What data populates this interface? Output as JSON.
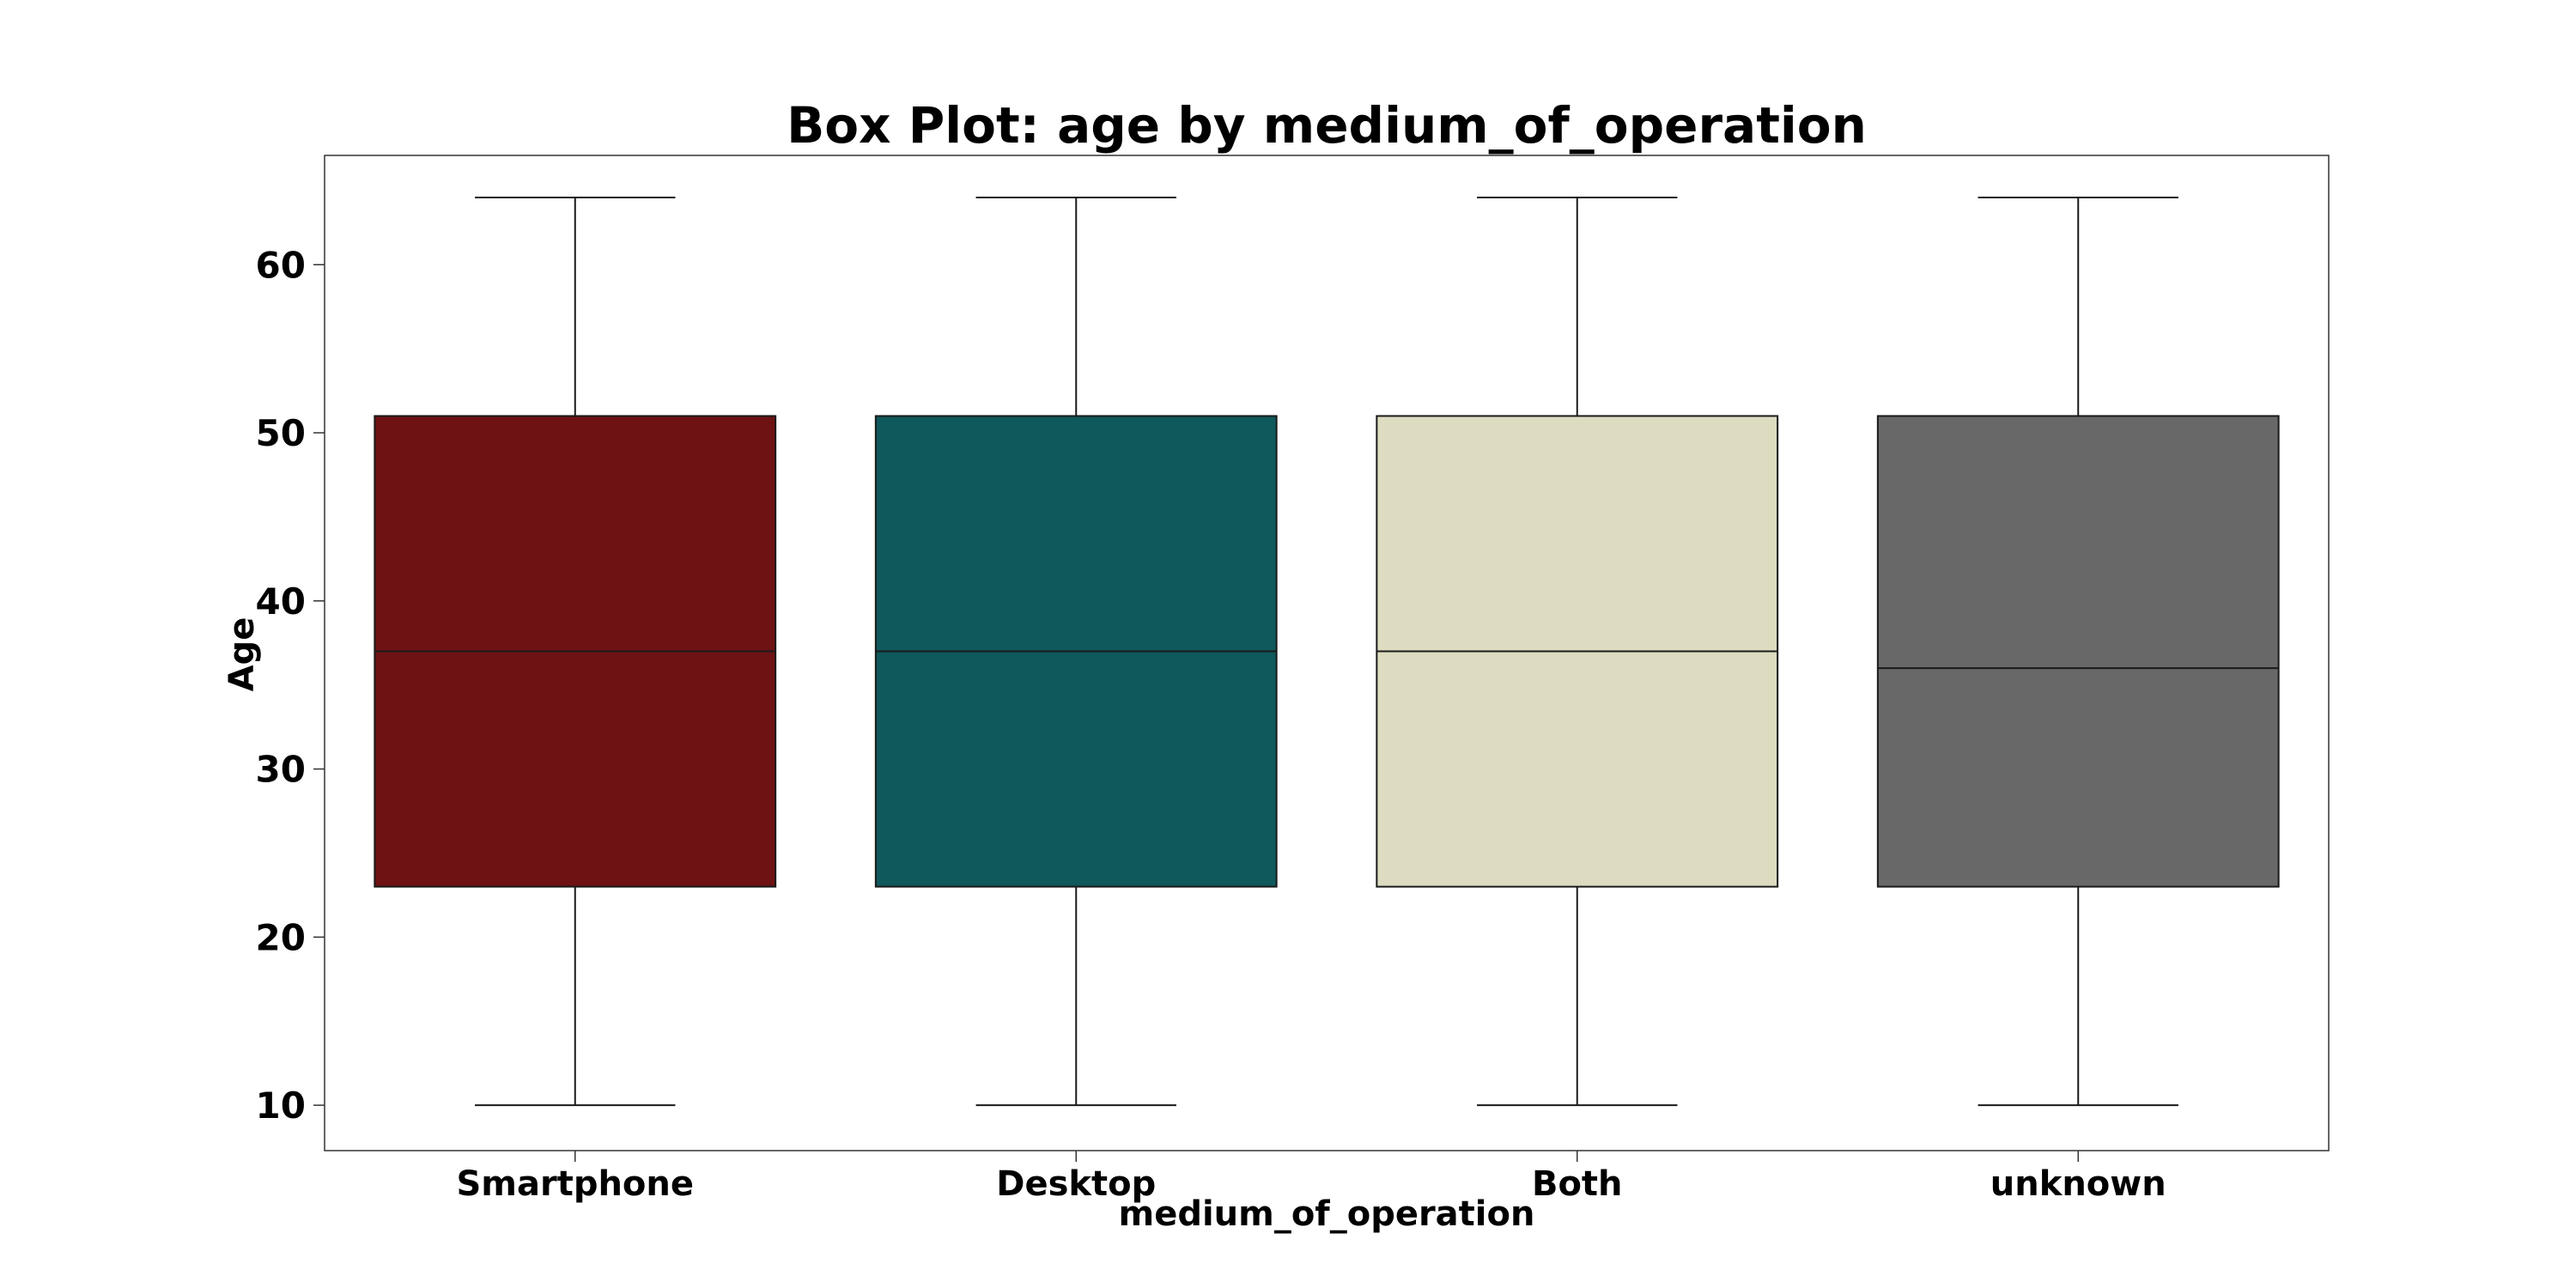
{
  "chart_data": {
    "type": "box",
    "title": "Box Plot: age by medium_of_operation",
    "xlabel": "medium_of_operation",
    "ylabel": "Age",
    "ylim": [
      7.3,
      66.5
    ],
    "yticks": [
      10,
      20,
      30,
      40,
      50,
      60
    ],
    "categories": [
      "Smartphone",
      "Desktop",
      "Both",
      "unknown"
    ],
    "boxes": [
      {
        "category": "Smartphone",
        "whisker_low": 10,
        "q1": 23,
        "median": 37,
        "q3": 51,
        "whisker_high": 64,
        "color": "#6e1214"
      },
      {
        "category": "Desktop",
        "whisker_low": 10,
        "q1": 23,
        "median": 37,
        "q3": 51,
        "whisker_high": 64,
        "color": "#0f585b"
      },
      {
        "category": "Both",
        "whisker_low": 10,
        "q1": 23,
        "median": 37,
        "q3": 51,
        "whisker_high": 64,
        "color": "#dddcc1"
      },
      {
        "category": "unknown",
        "whisker_low": 10,
        "q1": 23,
        "median": 36,
        "q3": 51,
        "whisker_high": 64,
        "color": "#686868"
      }
    ],
    "grid": false,
    "legend": "none"
  }
}
